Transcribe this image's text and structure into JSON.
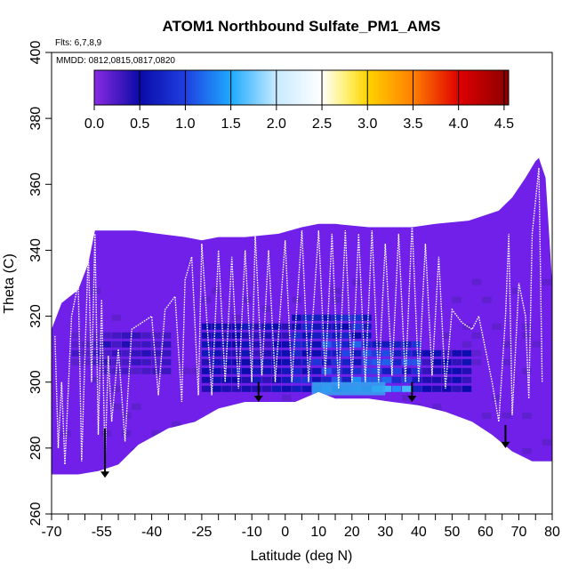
{
  "chart_data": {
    "type": "heatmap",
    "title": "ATOM1 Northbound Sulfate_PM1_AMS",
    "flights_note": "Flts: 6,7,8,9",
    "dates_note": "MMDD: 0812,0815,0817,0820",
    "xlabel": "Latitude (deg N)",
    "ylabel": "Theta (C)",
    "xlim": [
      -70,
      80
    ],
    "ylim": [
      260,
      400
    ],
    "x_ticks_minor": [
      -70,
      -65,
      -60,
      -55,
      -50,
      -45,
      -40,
      -35,
      -30,
      -25,
      -20,
      -15,
      -10,
      -5,
      0,
      5,
      10,
      15,
      20,
      25,
      30,
      35,
      40,
      45,
      50,
      55,
      60,
      65,
      70,
      75,
      80
    ],
    "x_tick_labels": [
      {
        "value": -70,
        "label": "-70"
      },
      {
        "value": -55,
        "label": "-55"
      },
      {
        "value": -40,
        "label": "-40"
      },
      {
        "value": -25,
        "label": "-25"
      },
      {
        "value": -10,
        "label": "-10"
      },
      {
        "value": 0,
        "label": "0"
      },
      {
        "value": 10,
        "label": "10"
      },
      {
        "value": 20,
        "label": "20"
      },
      {
        "value": 30,
        "label": "30"
      },
      {
        "value": 40,
        "label": "40"
      },
      {
        "value": 50,
        "label": "50"
      },
      {
        "value": 60,
        "label": "60"
      },
      {
        "value": 70,
        "label": "70"
      },
      {
        "value": 80,
        "label": "80"
      }
    ],
    "y_ticks": [
      260,
      280,
      300,
      320,
      340,
      360,
      380,
      400
    ],
    "y_tick_labels": [
      "260",
      "280",
      "300",
      "320",
      "340",
      "360",
      "380",
      "400"
    ],
    "colorbar": {
      "min": 0.0,
      "max": 4.55,
      "ticks": [
        0.0,
        0.5,
        1.0,
        1.5,
        2.0,
        2.5,
        3.0,
        3.5,
        4.0,
        4.5
      ],
      "tick_labels": [
        "0.0",
        "0.5",
        "1.0",
        "1.5",
        "2.0",
        "2.5",
        "3.0",
        "3.5",
        "4.0",
        "4.5"
      ],
      "color_stops": [
        {
          "v": 0.0,
          "c": "#8a2be2"
        },
        {
          "v": 0.5,
          "c": "#0a0aa8"
        },
        {
          "v": 1.0,
          "c": "#1f3fe0"
        },
        {
          "v": 1.5,
          "c": "#1eaaff"
        },
        {
          "v": 2.0,
          "c": "#c8eaff"
        },
        {
          "v": 2.5,
          "c": "#ffffff"
        },
        {
          "v": 2.75,
          "c": "#fff27a"
        },
        {
          "v": 3.0,
          "c": "#ffd400"
        },
        {
          "v": 3.5,
          "c": "#ff7f00"
        },
        {
          "v": 4.0,
          "c": "#e00000"
        },
        {
          "v": 4.55,
          "c": "#8a0000"
        }
      ]
    },
    "colors": {
      "background_field": "#7020e8",
      "mid_field": "#5a1ae0",
      "enhanced_field": "#1e28c8",
      "core_field": "#2f5ee8",
      "max_spot": "#32a8f0",
      "flight_track": "#ffffff",
      "arrow": "#000000"
    },
    "domain_top_theta": [
      [
        -57,
        346
      ],
      [
        -45,
        346
      ],
      [
        -38,
        345
      ],
      [
        -30,
        344
      ],
      [
        -25,
        343
      ],
      [
        -20,
        344
      ],
      [
        -12,
        344
      ],
      [
        -2,
        345
      ],
      [
        5,
        347
      ],
      [
        10,
        348
      ],
      [
        15,
        348
      ],
      [
        25,
        347
      ],
      [
        30,
        347
      ],
      [
        38,
        347
      ],
      [
        45,
        348
      ],
      [
        55,
        349
      ],
      [
        64,
        352
      ],
      [
        68,
        356
      ],
      [
        72,
        362
      ],
      [
        75,
        367
      ],
      [
        76,
        368
      ]
    ],
    "domain_bottom_theta": [
      [
        -70,
        272
      ],
      [
        -62,
        272
      ],
      [
        -56,
        273
      ],
      [
        -50,
        275
      ],
      [
        -44,
        281
      ],
      [
        -35,
        286
      ],
      [
        -27,
        288
      ],
      [
        -20,
        292
      ],
      [
        -12,
        294
      ],
      [
        -4,
        294
      ],
      [
        3,
        294
      ],
      [
        10,
        297
      ],
      [
        15,
        295
      ],
      [
        25,
        295
      ],
      [
        32,
        294
      ],
      [
        40,
        293
      ],
      [
        48,
        291
      ],
      [
        56,
        288
      ],
      [
        62,
        284
      ],
      [
        68,
        279
      ],
      [
        74,
        276
      ],
      [
        80,
        276
      ]
    ],
    "domain_left_edge": [
      [
        -70,
        272
      ],
      [
        -70,
        316
      ],
      [
        -67,
        324
      ],
      [
        -62,
        328
      ],
      [
        -59,
        336
      ],
      [
        -57,
        346
      ]
    ],
    "domain_right_edge": [
      [
        76,
        368
      ],
      [
        78,
        362
      ],
      [
        80,
        330
      ],
      [
        80,
        276
      ]
    ],
    "enhanced_regions": [
      {
        "lat": [
          -55,
          -35
        ],
        "theta": [
          300,
          315
        ],
        "value": 0.35
      },
      {
        "lat": [
          -25,
          10
        ],
        "theta": [
          296,
          316
        ],
        "value": 0.55
      },
      {
        "lat": [
          0,
          25
        ],
        "theta": [
          296,
          320
        ],
        "value": 0.8
      },
      {
        "lat": [
          10,
          40
        ],
        "theta": [
          295,
          312
        ],
        "value": 1.0
      },
      {
        "lat": [
          20,
          35
        ],
        "theta": [
          296,
          302
        ],
        "value": 1.4
      },
      {
        "lat": [
          40,
          55
        ],
        "theta": [
          295,
          310
        ],
        "value": 0.5
      },
      {
        "lat": [
          -65,
          -55
        ],
        "theta": [
          305,
          312
        ],
        "value": 0.3
      }
    ],
    "arrows": [
      {
        "lat": -54,
        "theta_top": 286,
        "theta_bottom": 271
      },
      {
        "lat": -8,
        "theta_top": 300,
        "theta_bottom": 294
      },
      {
        "lat": 38,
        "theta_top": 300,
        "theta_bottom": 294
      },
      {
        "lat": 66,
        "theta_top": 287,
        "theta_bottom": 280
      }
    ],
    "flight_track_theta": [
      [
        -69,
        314
      ],
      [
        -68,
        280
      ],
      [
        -67,
        300
      ],
      [
        -66,
        275
      ],
      [
        -64,
        320
      ],
      [
        -62,
        330
      ],
      [
        -61,
        276
      ],
      [
        -59,
        340
      ],
      [
        -58,
        300
      ],
      [
        -57,
        345
      ],
      [
        -56,
        284
      ],
      [
        -55,
        325
      ],
      [
        -54,
        276
      ],
      [
        -53,
        308
      ],
      [
        -52,
        288
      ],
      [
        -50,
        310
      ],
      [
        -48,
        282
      ],
      [
        -46,
        316
      ],
      [
        -43,
        318
      ],
      [
        -40,
        320
      ],
      [
        -38,
        296
      ],
      [
        -36,
        322
      ],
      [
        -33,
        326
      ],
      [
        -31,
        294
      ],
      [
        -30,
        331
      ],
      [
        -28,
        338
      ],
      [
        -26,
        296
      ],
      [
        -25,
        342
      ],
      [
        -22,
        296
      ],
      [
        -20,
        340
      ],
      [
        -18,
        300
      ],
      [
        -16,
        338
      ],
      [
        -14,
        298
      ],
      [
        -12,
        340
      ],
      [
        -10,
        300
      ],
      [
        -9,
        345
      ],
      [
        -7,
        302
      ],
      [
        -5,
        340
      ],
      [
        -3,
        300
      ],
      [
        0,
        343
      ],
      [
        2,
        300
      ],
      [
        5,
        346
      ],
      [
        7,
        300
      ],
      [
        10,
        346
      ],
      [
        12,
        302
      ],
      [
        14,
        345
      ],
      [
        16,
        298
      ],
      [
        18,
        346
      ],
      [
        20,
        300
      ],
      [
        22,
        345
      ],
      [
        24,
        300
      ],
      [
        26,
        346
      ],
      [
        28,
        300
      ],
      [
        30,
        342
      ],
      [
        32,
        302
      ],
      [
        34,
        345
      ],
      [
        36,
        300
      ],
      [
        38,
        348
      ],
      [
        40,
        300
      ],
      [
        42,
        342
      ],
      [
        44,
        302
      ],
      [
        46,
        338
      ],
      [
        48,
        298
      ],
      [
        50,
        322
      ],
      [
        53,
        318
      ],
      [
        56,
        316
      ],
      [
        58,
        320
      ],
      [
        62,
        300
      ],
      [
        64,
        288
      ],
      [
        66,
        320
      ],
      [
        67,
        345
      ],
      [
        68,
        290
      ],
      [
        70,
        330
      ],
      [
        72,
        320
      ],
      [
        73,
        295
      ],
      [
        74,
        345
      ],
      [
        76,
        365
      ],
      [
        77,
        300
      ]
    ]
  }
}
